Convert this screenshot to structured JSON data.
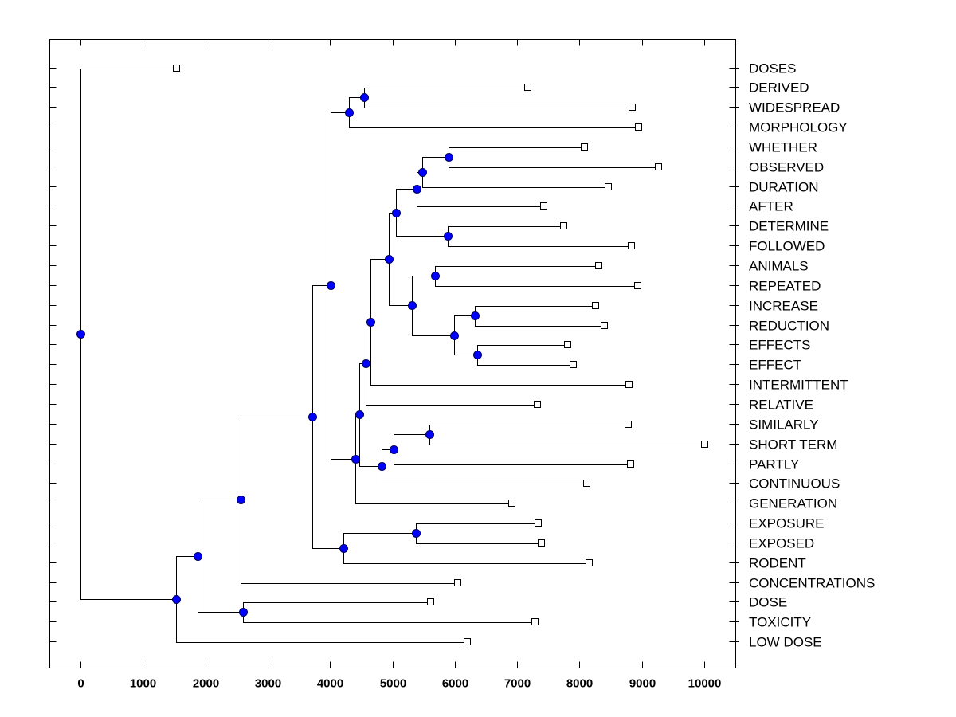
{
  "chart_data": {
    "type": "dendrogram",
    "title": "",
    "xlabel": "",
    "ylabel": "",
    "xlim": [
      -500,
      10500
    ],
    "x_ticks": [
      0,
      1000,
      2000,
      3000,
      4000,
      5000,
      6000,
      7000,
      8000,
      9000,
      10000
    ],
    "x_tick_labels": [
      "0",
      "1000",
      "2000",
      "3000",
      "4000",
      "5000",
      "6000",
      "7000",
      "8000",
      "9000",
      "10000"
    ],
    "grid": false,
    "colors": {
      "node": "#0000ff",
      "node_outline": "#00005a",
      "line": "#000000",
      "leaf_fill": "#ffffff"
    },
    "leaves": [
      {
        "label": "DOSES",
        "value": 1530
      },
      {
        "label": "DERIVED",
        "value": 7165
      },
      {
        "label": "WIDESPREAD",
        "value": 8838
      },
      {
        "label": "MORPHOLOGY",
        "value": 8940
      },
      {
        "label": "WHETHER",
        "value": 8072
      },
      {
        "label": "OBSERVED",
        "value": 9259
      },
      {
        "label": "DURATION",
        "value": 8455
      },
      {
        "label": "AFTER",
        "value": 7420
      },
      {
        "label": "DETERMINE",
        "value": 7740
      },
      {
        "label": "FOLLOWED",
        "value": 8825
      },
      {
        "label": "ANIMALS",
        "value": 8301
      },
      {
        "label": "REPEATED",
        "value": 8927
      },
      {
        "label": "INCREASE",
        "value": 8250
      },
      {
        "label": "REDUCTION",
        "value": 8391
      },
      {
        "label": "EFFECTS",
        "value": 7803
      },
      {
        "label": "EFFECT",
        "value": 7893
      },
      {
        "label": "INTERMITTENT",
        "value": 8787
      },
      {
        "label": "RELATIVE",
        "value": 7318
      },
      {
        "label": "SIMILARLY",
        "value": 8774
      },
      {
        "label": "SHORT TERM",
        "value": 10000
      },
      {
        "label": "PARTLY",
        "value": 8812
      },
      {
        "label": "CONTINUOUS",
        "value": 8110
      },
      {
        "label": "GENERATION",
        "value": 6909
      },
      {
        "label": "EXPOSURE",
        "value": 7331
      },
      {
        "label": "EXPOSED",
        "value": 7382
      },
      {
        "label": "RODENT",
        "value": 8148
      },
      {
        "label": "CONCENTRATIONS",
        "value": 6041
      },
      {
        "label": "DOSE",
        "value": 5607
      },
      {
        "label": "TOXICITY",
        "value": 7280
      },
      {
        "label": "LOW DOSE",
        "value": 6194
      }
    ],
    "nodes": [
      {
        "id": "n1",
        "value": 4547,
        "children": [
          "DERIVED",
          "WIDESPREAD"
        ]
      },
      {
        "id": "n2",
        "value": 4304,
        "children": [
          "n1",
          "MORPHOLOGY"
        ]
      },
      {
        "id": "n3",
        "value": 5900,
        "children": [
          "WHETHER",
          "OBSERVED"
        ]
      },
      {
        "id": "n4",
        "value": 5479,
        "children": [
          "n3",
          "DURATION"
        ]
      },
      {
        "id": "n5",
        "value": 5390,
        "children": [
          "n4",
          "AFTER"
        ]
      },
      {
        "id": "n6",
        "value": 5888,
        "children": [
          "DETERMINE",
          "FOLLOWED"
        ]
      },
      {
        "id": "n7",
        "value": 5057,
        "children": [
          "n5",
          "n6"
        ]
      },
      {
        "id": "n8",
        "value": 5683,
        "children": [
          "ANIMALS",
          "REPEATED"
        ]
      },
      {
        "id": "n9",
        "value": 6322,
        "children": [
          "INCREASE",
          "REDUCTION"
        ]
      },
      {
        "id": "n10",
        "value": 6360,
        "children": [
          "EFFECTS",
          "EFFECT"
        ]
      },
      {
        "id": "n11",
        "value": 5990,
        "children": [
          "n9",
          "n10"
        ]
      },
      {
        "id": "n12",
        "value": 5313,
        "children": [
          "n8",
          "n11"
        ]
      },
      {
        "id": "n13",
        "value": 4943,
        "children": [
          "n7",
          "n12"
        ]
      },
      {
        "id": "n14",
        "value": 4649,
        "children": [
          "n13",
          "INTERMITTENT"
        ]
      },
      {
        "id": "n15",
        "value": 4572,
        "children": [
          "n14",
          "RELATIVE"
        ]
      },
      {
        "id": "n16",
        "value": 5594,
        "children": [
          "SIMILARLY",
          "SHORT TERM"
        ]
      },
      {
        "id": "n17",
        "value": 5019,
        "children": [
          "n16",
          "PARTLY"
        ]
      },
      {
        "id": "n18",
        "value": 4828,
        "children": [
          "n17",
          "CONTINUOUS"
        ]
      },
      {
        "id": "n19",
        "value": 4470,
        "children": [
          "n15",
          "n18"
        ]
      },
      {
        "id": "n20",
        "value": 4406,
        "children": [
          "n19",
          "GENERATION"
        ]
      },
      {
        "id": "n21",
        "value": 4010,
        "children": [
          "n2",
          "n20"
        ]
      },
      {
        "id": "n22",
        "value": 5377,
        "children": [
          "EXPOSURE",
          "EXPOSED"
        ]
      },
      {
        "id": "n23",
        "value": 4215,
        "children": [
          "n22",
          "RODENT"
        ]
      },
      {
        "id": "n24",
        "value": 3716,
        "children": [
          "n21",
          "n23"
        ]
      },
      {
        "id": "n25",
        "value": 2567,
        "children": [
          "n24",
          "CONCENTRATIONS"
        ]
      },
      {
        "id": "n26",
        "value": 2605,
        "children": [
          "DOSE",
          "TOXICITY"
        ]
      },
      {
        "id": "n27",
        "value": 1877,
        "children": [
          "n25",
          "n26"
        ]
      },
      {
        "id": "n28",
        "value": 1533,
        "children": [
          "n27",
          "LOW DOSE"
        ]
      },
      {
        "id": "root",
        "value": 0,
        "children": [
          "DOSES",
          "n28"
        ]
      }
    ]
  }
}
